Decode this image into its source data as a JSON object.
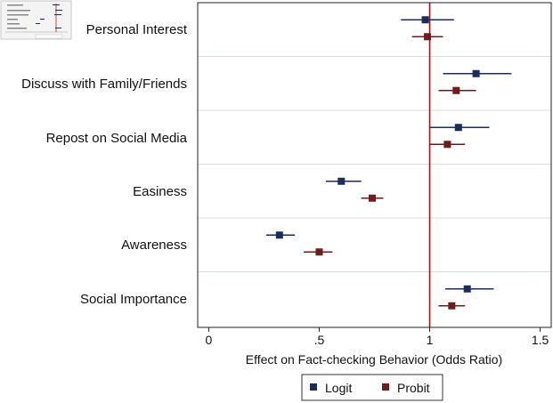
{
  "chart_data": {
    "type": "scatter",
    "title": "",
    "xlabel": "Effect on Fact-checking Behavior (Odds Ratio)",
    "ylabel": "",
    "xlim": [
      -0.05,
      1.55
    ],
    "xticks": [
      0,
      0.5,
      1,
      1.5
    ],
    "xtick_labels": [
      "0",
      ".5",
      "1",
      "1.5"
    ],
    "reference_line": 1,
    "grid": "horizontal lines between categories",
    "legend_position": "bottom",
    "categories": [
      "Personal Interest",
      "Discuss with Family/Friends",
      "Repost on Social Media",
      "Easiness",
      "Awareness",
      "Social Importance"
    ],
    "series": [
      {
        "name": "Logit",
        "color": "#1a2d5c",
        "estimates": [
          0.98,
          1.21,
          1.13,
          0.6,
          0.32,
          1.17
        ],
        "ci_low": [
          0.87,
          1.06,
          1.0,
          0.53,
          0.26,
          1.07
        ],
        "ci_high": [
          1.11,
          1.37,
          1.27,
          0.69,
          0.39,
          1.29
        ]
      },
      {
        "name": "Probit",
        "color": "#6e1c1c",
        "estimates": [
          0.99,
          1.12,
          1.08,
          0.74,
          0.5,
          1.1
        ],
        "ci_low": [
          0.92,
          1.04,
          1.0,
          0.69,
          0.43,
          1.04
        ],
        "ci_high": [
          1.06,
          1.21,
          1.16,
          0.79,
          0.56,
          1.16
        ]
      }
    ]
  },
  "thumbnail": {
    "icon": "chart-thumbnail-icon",
    "line_color": "#b22222"
  },
  "colors": {
    "reference_line": "#a0141e",
    "grid": "#d8dee6",
    "frame": "#222222"
  }
}
